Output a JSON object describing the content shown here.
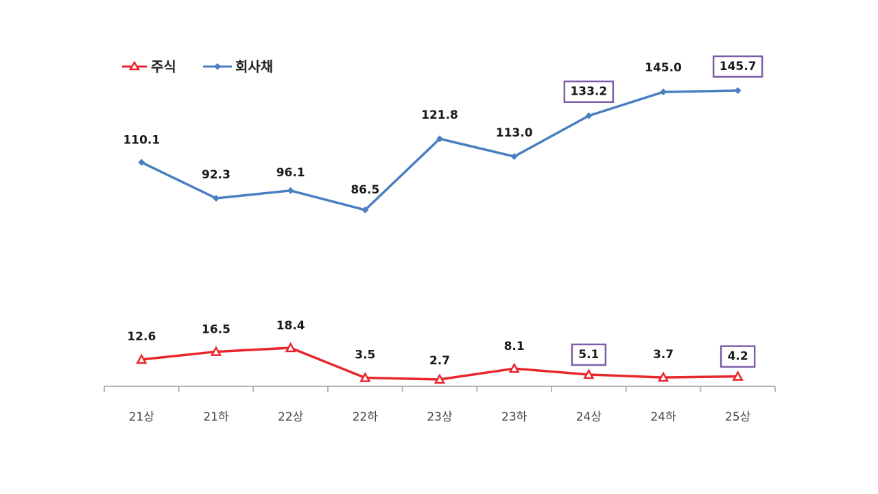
{
  "chart_data": {
    "type": "line",
    "title": "",
    "xlabel": "",
    "ylabel": "",
    "categories": [
      "21상",
      "21하",
      "22상",
      "22하",
      "23상",
      "23하",
      "24상",
      "24하",
      "25상"
    ],
    "series": [
      {
        "name": "주식",
        "color": "#e8262b",
        "marker": "triangle",
        "values": [
          12.6,
          16.5,
          18.4,
          3.5,
          2.7,
          8.1,
          5.1,
          3.7,
          4.2
        ],
        "labels": [
          "12.6",
          "16.5",
          "18.4",
          "3.5",
          "2.7",
          "8.1",
          "5.1",
          "3.7",
          "4.2"
        ],
        "highlighted": [
          false,
          false,
          false,
          false,
          false,
          false,
          true,
          false,
          true
        ]
      },
      {
        "name": "회사채",
        "color": "#4a7fc1",
        "marker": "diamond",
        "values": [
          110.1,
          92.3,
          96.1,
          86.5,
          121.8,
          113.0,
          133.2,
          145.0,
          145.7
        ],
        "labels": [
          "110.1",
          "92.3",
          "96.1",
          "86.5",
          "121.8",
          "113.0",
          "133.2",
          "145.0",
          "145.7"
        ],
        "highlighted": [
          false,
          false,
          false,
          false,
          false,
          false,
          true,
          false,
          true
        ]
      }
    ],
    "highlight_box_color": "#7b5ea7",
    "legend": {
      "position": "top-left",
      "entries": [
        "주식",
        "회사채"
      ]
    },
    "grid": false,
    "y_axis_visible": false,
    "broken_axis": true
  }
}
